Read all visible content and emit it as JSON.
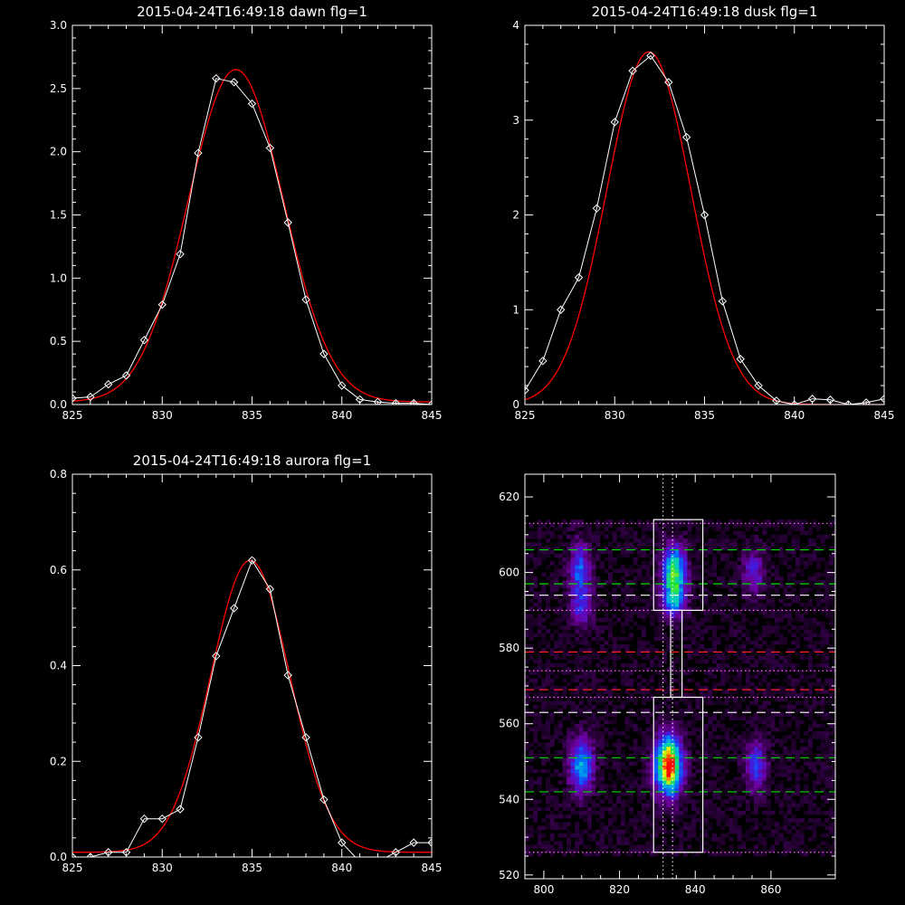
{
  "chart_data": [
    {
      "type": "line",
      "title": "2015-04-24T16:49:18 dawn flg=1",
      "xlim": [
        825,
        845
      ],
      "ylim": [
        0,
        3.0
      ],
      "xticks": [
        "825",
        "830",
        "835",
        "840",
        "845"
      ],
      "yticks": [
        "0.0",
        "0.5",
        "1.0",
        "1.5",
        "2.0",
        "2.5",
        "3.0"
      ],
      "grid": false,
      "series": [
        {
          "color": "#ffffff",
          "markers": "diamond",
          "x": [
            825,
            826,
            827,
            828,
            829,
            830,
            831,
            832,
            833,
            834,
            835,
            836,
            837,
            838,
            839,
            840,
            841,
            842,
            843,
            844,
            845
          ],
          "y": [
            0.05,
            0.06,
            0.16,
            0.23,
            0.51,
            0.79,
            1.19,
            1.99,
            2.58,
            2.55,
            2.38,
            2.03,
            1.44,
            0.83,
            0.4,
            0.15,
            0.04,
            0.02,
            0.01,
            0.01,
            0.0
          ]
        },
        {
          "color": "#ff0000",
          "markers": "none",
          "fit": {
            "amp": 2.63,
            "center": 834.1,
            "sigma": 2.65,
            "base": 0.02
          }
        }
      ]
    },
    {
      "type": "line",
      "title": "2015-04-24T16:49:18 dusk flg=1",
      "xlim": [
        825,
        845
      ],
      "ylim": [
        0,
        4
      ],
      "xticks": [
        "825",
        "830",
        "835",
        "840",
        "845"
      ],
      "yticks": [
        "0",
        "1",
        "2",
        "3",
        "4"
      ],
      "grid": false,
      "series": [
        {
          "color": "#ffffff",
          "markers": "diamond",
          "x": [
            825,
            826,
            827,
            828,
            829,
            830,
            831,
            832,
            833,
            834,
            835,
            836,
            837,
            838,
            839,
            840,
            841,
            842,
            843,
            844,
            845
          ],
          "y": [
            0.15,
            0.46,
            1.0,
            1.34,
            2.07,
            2.98,
            3.52,
            3.68,
            3.4,
            2.82,
            2.0,
            1.09,
            0.48,
            0.2,
            0.04,
            0.0,
            0.06,
            0.05,
            0.0,
            0.02,
            0.06
          ]
        },
        {
          "color": "#ff0000",
          "markers": "none",
          "fit": {
            "amp": 3.72,
            "center": 831.9,
            "sigma": 2.35,
            "base": 0.0
          }
        }
      ]
    },
    {
      "type": "line",
      "title": "2015-04-24T16:49:18 aurora flg=1",
      "xlim": [
        825,
        845
      ],
      "ylim": [
        0,
        0.8
      ],
      "xticks": [
        "825",
        "830",
        "835",
        "840",
        "845"
      ],
      "yticks": [
        "0.0",
        "0.2",
        "0.4",
        "0.6",
        "0.8"
      ],
      "grid": false,
      "series": [
        {
          "color": "#ffffff",
          "markers": "diamond",
          "x": [
            825,
            826,
            827,
            828,
            829,
            830,
            831,
            832,
            833,
            834,
            835,
            836,
            837,
            838,
            839,
            840,
            841,
            842,
            843,
            844,
            845
          ],
          "y": [
            0.0,
            0.0,
            0.01,
            0.01,
            0.08,
            0.08,
            0.1,
            0.25,
            0.42,
            0.52,
            0.62,
            0.56,
            0.38,
            0.25,
            0.12,
            0.03,
            -0.01,
            -0.01,
            0.01,
            0.03,
            0.03
          ]
        },
        {
          "color": "#ff0000",
          "markers": "none",
          "fit": {
            "amp": 0.61,
            "center": 834.9,
            "sigma": 2.2,
            "base": 0.01
          }
        }
      ]
    },
    {
      "type": "heatmap",
      "title": "",
      "xlim": [
        795,
        877
      ],
      "ylim": [
        519,
        626
      ],
      "xticks": [
        "800",
        "820",
        "840",
        "860"
      ],
      "yticks": [
        "520",
        "540",
        "560",
        "580",
        "600",
        "620"
      ],
      "blobs": [
        {
          "x": 810,
          "y": 549,
          "sx": 2.2,
          "sy": 5.0,
          "amp": 0.55
        },
        {
          "x": 809.5,
          "y": 600,
          "sx": 2.0,
          "sy": 5.5,
          "amp": 0.42
        },
        {
          "x": 810,
          "y": 590,
          "sx": 2.0,
          "sy": 3.0,
          "amp": 0.25
        },
        {
          "x": 833,
          "y": 549,
          "sx": 2.5,
          "sy": 5.5,
          "amp": 1.0
        },
        {
          "x": 834.5,
          "y": 600,
          "sx": 2.2,
          "sy": 5.0,
          "amp": 0.72
        },
        {
          "x": 834,
          "y": 592,
          "sx": 2.2,
          "sy": 3.0,
          "amp": 0.4
        },
        {
          "x": 856,
          "y": 549,
          "sx": 2.0,
          "sy": 4.5,
          "amp": 0.38
        },
        {
          "x": 855.5,
          "y": 600,
          "sx": 2.0,
          "sy": 4.0,
          "amp": 0.3
        }
      ],
      "boxes": [
        {
          "x": [
            829,
            842
          ],
          "y": [
            526,
            567
          ]
        },
        {
          "x": [
            829,
            842
          ],
          "y": [
            590,
            614
          ]
        },
        {
          "x": [
            833.5,
            836.5
          ],
          "y": [
            567,
            590
          ]
        }
      ],
      "hlines": [
        {
          "y": 606,
          "color": "#00dd00",
          "dash": "long"
        },
        {
          "y": 597,
          "color": "#00dd00",
          "dash": "long"
        },
        {
          "y": 551,
          "color": "#00dd00",
          "dash": "long"
        },
        {
          "y": 542,
          "color": "#00dd00",
          "dash": "long"
        },
        {
          "y": 594,
          "color": "#ffffff",
          "dash": "long"
        },
        {
          "y": 563,
          "color": "#ffffff",
          "dash": "long"
        },
        {
          "y": 579,
          "color": "#ff2020",
          "dash": "long"
        },
        {
          "y": 569,
          "color": "#ff2020",
          "dash": "long"
        },
        {
          "y": 613,
          "color": "#ff60ff",
          "dash": "dot"
        },
        {
          "y": 590,
          "color": "#ff60ff",
          "dash": "dot"
        },
        {
          "y": 574,
          "color": "#ff60ff",
          "dash": "dot"
        },
        {
          "y": 567,
          "color": "#ff60ff",
          "dash": "dot"
        },
        {
          "y": 526,
          "color": "#ff60ff",
          "dash": "dot"
        }
      ],
      "vlines": [
        {
          "x": 831.5,
          "color": "#ffffff",
          "dash": "dot"
        },
        {
          "x": 834,
          "color": "#ffffff",
          "dash": "dot"
        }
      ]
    }
  ]
}
